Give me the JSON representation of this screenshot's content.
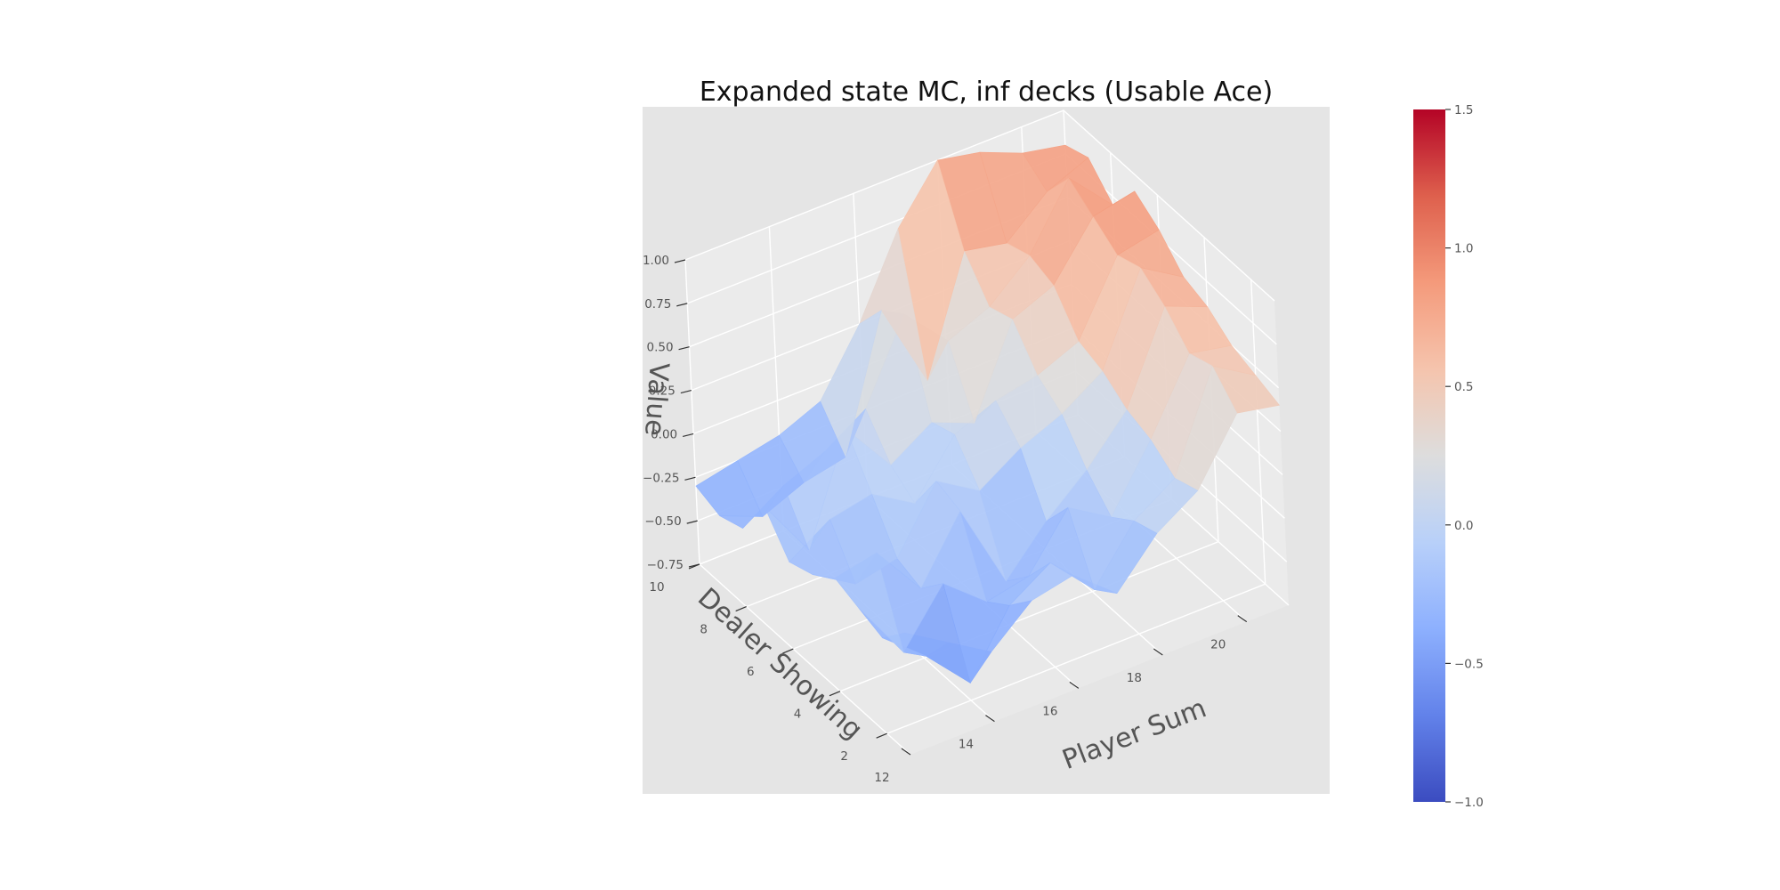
{
  "chart_data": {
    "type": "surface",
    "title": "Expanded state MC, inf decks (Usable Ace)",
    "xlabel": "Player Sum",
    "ylabel": "Dealer Showing",
    "zlabel": "Value",
    "colormap": "coolwarm",
    "colorbar_range": [
      -1.0,
      1.5
    ],
    "colorbar_ticks": [
      "1.5",
      "1.0",
      "0.5",
      "0.0",
      "−0.5",
      "−1.0"
    ],
    "colorbar_tick_values": [
      1.5,
      1.0,
      0.5,
      0.0,
      -0.5,
      -1.0
    ],
    "x_ticks": [
      "12",
      "14",
      "16",
      "18",
      "20"
    ],
    "x_tick_values": [
      12,
      14,
      16,
      18,
      20
    ],
    "y_ticks": [
      "2",
      "4",
      "6",
      "8",
      "10"
    ],
    "y_tick_values": [
      2,
      4,
      6,
      8,
      10
    ],
    "z_ticks": [
      "−0.75",
      "−0.50",
      "−0.25",
      "0.00",
      "0.25",
      "0.50",
      "0.75",
      "1.00"
    ],
    "z_tick_values": [
      -0.75,
      -0.5,
      -0.25,
      0.0,
      0.25,
      0.5,
      0.75,
      1.0
    ],
    "x": [
      12,
      13,
      14,
      15,
      16,
      17,
      18,
      19,
      20,
      21
    ],
    "y": [
      1,
      2,
      3,
      4,
      5,
      6,
      7,
      8,
      9,
      10
    ],
    "z": [
      [
        -0.05,
        -0.2,
        -0.35,
        -0.15,
        -0.1,
        -0.3,
        -0.05,
        0.1,
        0.45,
        0.4
      ],
      [
        -0.2,
        -0.4,
        -0.65,
        -0.3,
        -0.15,
        -0.4,
        -0.1,
        0.05,
        0.6,
        0.45
      ],
      [
        -0.15,
        -0.5,
        -0.2,
        -0.4,
        -0.35,
        -0.05,
        -0.2,
        0.15,
        0.55,
        0.5
      ],
      [
        -0.1,
        -0.05,
        -0.35,
        0.0,
        -0.5,
        -0.25,
        -0.05,
        0.2,
        0.7,
        0.6
      ],
      [
        -0.2,
        -0.35,
        -0.3,
        0.05,
        -0.1,
        0.05,
        0.15,
        0.3,
        0.8,
        0.65
      ],
      [
        -0.25,
        -0.1,
        -0.05,
        -0.2,
        0.1,
        0.2,
        0.25,
        0.35,
        0.75,
        0.8
      ],
      [
        -0.05,
        -0.4,
        0.2,
        -0.1,
        0.05,
        -0.05,
        0.45,
        0.55,
        0.85,
        0.9
      ],
      [
        -0.3,
        -0.15,
        -0.05,
        0.1,
        0.55,
        0.3,
        0.4,
        0.6,
        0.95,
        0.7
      ],
      [
        -0.35,
        -0.45,
        -0.35,
        -0.3,
        0.45,
        -0.05,
        0.6,
        0.55,
        0.75,
        0.85
      ],
      [
        -0.3,
        -0.25,
        -0.2,
        -0.1,
        0.25,
        0.7,
        1.0,
        0.95,
        0.85,
        0.8
      ]
    ]
  }
}
